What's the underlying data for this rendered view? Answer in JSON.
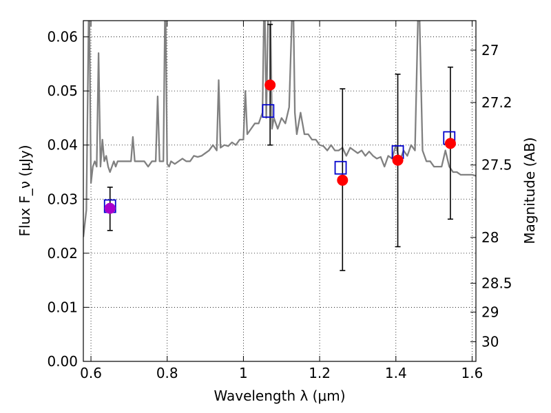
{
  "chart_data": {
    "type": "scatter",
    "xlabel": "Wavelength λ (μm)",
    "ylabel": "Flux F_ν (μJy)",
    "y2label": "Magnitude (AB)",
    "xlim": [
      0.58,
      1.61
    ],
    "ylim": [
      0.0,
      0.063
    ],
    "grid": true,
    "x_ticks": [
      "0.6",
      "0.8",
      "1",
      "1.2",
      "1.4",
      "1.6"
    ],
    "x_tick_values": [
      0.6,
      0.8,
      1.0,
      1.2,
      1.4,
      1.6
    ],
    "y_ticks": [
      "0.00",
      "0.01",
      "0.02",
      "0.03",
      "0.04",
      "0.05",
      "0.06"
    ],
    "y_tick_values": [
      0.0,
      0.01,
      0.02,
      0.03,
      0.04,
      0.05,
      0.06
    ],
    "y2_ticks": [
      "27",
      "27.2",
      "27.5",
      "28",
      "28.5",
      "29",
      "30"
    ],
    "y2_tick_values": [
      27.0,
      27.2,
      27.5,
      28.0,
      28.5,
      29.0,
      30.0
    ],
    "colors": {
      "sed": "#808080",
      "observed": "#ff0000",
      "observed_optical": "#aa00cc",
      "model": "#0000cc",
      "errorbar": "#000000",
      "grid": "#000000"
    },
    "series": [
      {
        "kind": "line",
        "x": [
          0.58,
          0.588,
          0.595,
          0.6,
          0.605,
          0.61,
          0.615,
          0.62,
          0.625,
          0.63,
          0.635,
          0.64,
          0.645,
          0.65,
          0.655,
          0.66,
          0.665,
          0.67,
          0.68,
          0.69,
          0.7,
          0.705,
          0.71,
          0.715,
          0.72,
          0.73,
          0.74,
          0.75,
          0.76,
          0.77,
          0.775,
          0.78,
          0.79,
          0.795,
          0.8,
          0.805,
          0.81,
          0.82,
          0.83,
          0.84,
          0.85,
          0.86,
          0.87,
          0.88,
          0.89,
          0.9,
          0.91,
          0.92,
          0.93,
          0.935,
          0.94,
          0.95,
          0.96,
          0.97,
          0.98,
          0.99,
          1.0,
          1.005,
          1.01,
          1.02,
          1.03,
          1.04,
          1.05,
          1.055,
          1.06,
          1.065,
          1.07,
          1.075,
          1.08,
          1.09,
          1.1,
          1.11,
          1.12,
          1.13,
          1.135,
          1.14,
          1.15,
          1.16,
          1.17,
          1.18,
          1.19,
          1.2,
          1.21,
          1.22,
          1.23,
          1.24,
          1.25,
          1.26,
          1.27,
          1.28,
          1.29,
          1.3,
          1.31,
          1.32,
          1.33,
          1.34,
          1.35,
          1.36,
          1.37,
          1.38,
          1.39,
          1.4,
          1.41,
          1.42,
          1.43,
          1.44,
          1.45,
          1.46,
          1.47,
          1.48,
          1.49,
          1.5,
          1.51,
          1.52,
          1.53,
          1.54,
          1.55,
          1.56,
          1.57,
          1.58,
          1.59,
          1.6,
          1.61
        ],
        "y": [
          0.023,
          0.028,
          0.07,
          0.033,
          0.036,
          0.037,
          0.036,
          0.057,
          0.036,
          0.041,
          0.037,
          0.038,
          0.036,
          0.035,
          0.036,
          0.037,
          0.036,
          0.037,
          0.037,
          0.037,
          0.037,
          0.037,
          0.0415,
          0.037,
          0.037,
          0.037,
          0.037,
          0.036,
          0.037,
          0.037,
          0.049,
          0.037,
          0.037,
          0.07,
          0.0365,
          0.036,
          0.037,
          0.0365,
          0.037,
          0.0375,
          0.037,
          0.037,
          0.038,
          0.0378,
          0.038,
          0.0385,
          0.039,
          0.04,
          0.039,
          0.052,
          0.0395,
          0.04,
          0.0398,
          0.0405,
          0.04,
          0.041,
          0.041,
          0.05,
          0.042,
          0.043,
          0.044,
          0.044,
          0.046,
          0.07,
          0.045,
          0.065,
          0.07,
          0.043,
          0.045,
          0.043,
          0.045,
          0.044,
          0.047,
          0.07,
          0.046,
          0.042,
          0.046,
          0.042,
          0.042,
          0.041,
          0.041,
          0.04,
          0.0398,
          0.039,
          0.04,
          0.039,
          0.039,
          0.0395,
          0.038,
          0.0395,
          0.039,
          0.0385,
          0.039,
          0.038,
          0.0388,
          0.038,
          0.0375,
          0.0378,
          0.036,
          0.038,
          0.0375,
          0.04,
          0.037,
          0.039,
          0.038,
          0.04,
          0.039,
          0.07,
          0.039,
          0.037,
          0.037,
          0.036,
          0.036,
          0.036,
          0.039,
          0.036,
          0.035,
          0.035,
          0.0345,
          0.0345,
          0.0345,
          0.0345,
          0.0343
        ],
        "clip_top": true
      },
      {
        "kind": "scatter",
        "marker": "square-open",
        "x": [
          0.65,
          1.065,
          1.255,
          1.405,
          1.54
        ],
        "y": [
          0.0287,
          0.0463,
          0.0358,
          0.0387,
          0.0413
        ]
      },
      {
        "kind": "scatter-errorbar",
        "marker": "circle-filled",
        "x": [
          0.65,
          1.07,
          1.26,
          1.405,
          1.543
        ],
        "y": [
          0.0283,
          0.0511,
          0.0335,
          0.0372,
          0.0403
        ],
        "yerr_low": [
          0.0041,
          0.0111,
          0.0167,
          0.016,
          0.014
        ],
        "yerr_high": [
          0.0039,
          0.0112,
          0.0169,
          0.0159,
          0.0141
        ]
      }
    ]
  }
}
